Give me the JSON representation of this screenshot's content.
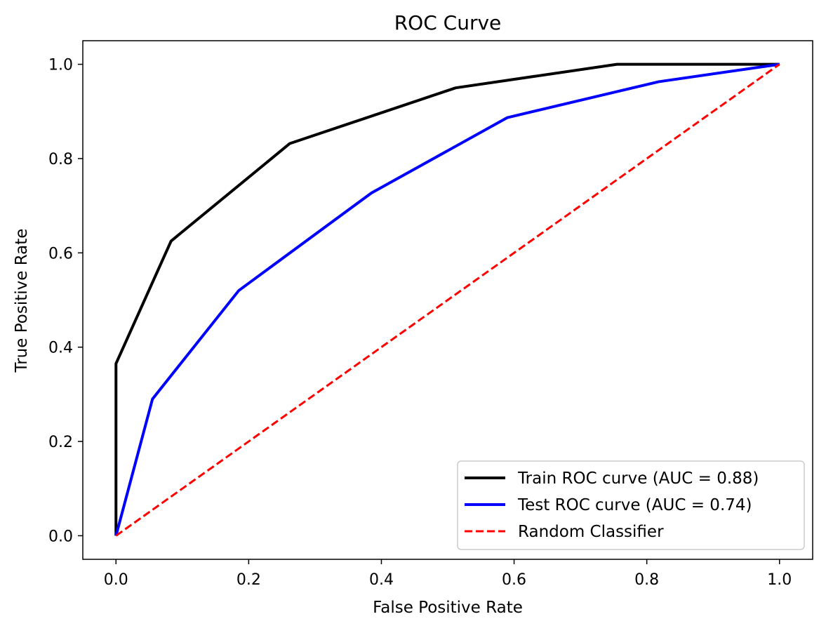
{
  "chart_data": {
    "type": "line",
    "title": "ROC Curve",
    "xlabel": "False Positive Rate",
    "ylabel": "True Positive Rate",
    "xlim": [
      -0.05,
      1.05
    ],
    "ylim": [
      -0.05,
      1.05
    ],
    "xticks": [
      0.0,
      0.2,
      0.4,
      0.6,
      0.8,
      1.0
    ],
    "yticks": [
      0.0,
      0.2,
      0.4,
      0.6,
      0.8,
      1.0
    ],
    "xtick_labels": [
      "0.0",
      "0.2",
      "0.4",
      "0.6",
      "0.8",
      "1.0"
    ],
    "ytick_labels": [
      "0.0",
      "0.2",
      "0.4",
      "0.6",
      "0.8",
      "1.0"
    ],
    "grid": false,
    "legend_position": "lower-right",
    "series": [
      {
        "name": "Train ROC curve (AUC = 0.88)",
        "color": "#000000",
        "style": "solid",
        "x": [
          0.0,
          0.0,
          0.083,
          0.262,
          0.512,
          0.755,
          1.0
        ],
        "y": [
          0.0,
          0.365,
          0.625,
          0.832,
          0.95,
          1.0,
          1.0
        ]
      },
      {
        "name": "Test ROC curve (AUC = 0.74)",
        "color": "#0000ff",
        "style": "solid",
        "x": [
          0.0,
          0.055,
          0.185,
          0.385,
          0.59,
          0.818,
          1.0
        ],
        "y": [
          0.0,
          0.29,
          0.52,
          0.727,
          0.887,
          0.963,
          1.0
        ]
      },
      {
        "name": "Random Classifier",
        "color": "#ff0000",
        "style": "dashed",
        "x": [
          0.0,
          1.0
        ],
        "y": [
          0.0,
          1.0
        ]
      }
    ]
  }
}
